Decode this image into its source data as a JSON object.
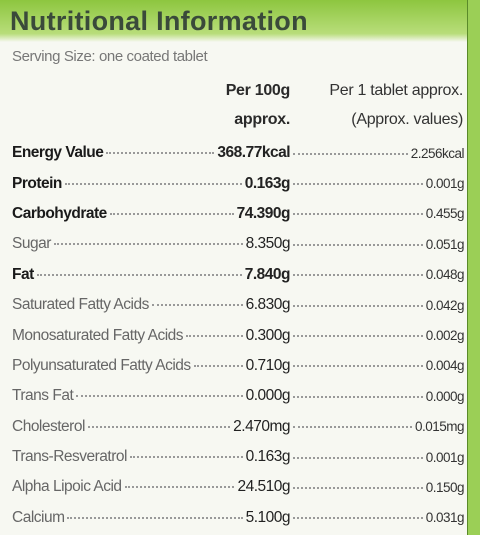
{
  "title": "Nutritional Information",
  "serving_size": "Serving Size: one coated tablet",
  "table": {
    "header": [
      [
        "Per 100g",
        "approx."
      ],
      [
        "Per 1 tablet approx.",
        "(Approx. values)"
      ]
    ],
    "rows": [
      [
        "Energy Value",
        "368.77kcal",
        "2.256kcal"
      ],
      [
        "Protein",
        "0.163g",
        "0.001g"
      ],
      [
        "Carbohydrate",
        "74.390g",
        "0.455g"
      ],
      [
        "Sugar",
        "8.350g",
        "0.051g"
      ],
      [
        "Fat",
        "7.840g",
        "0.048g"
      ],
      [
        "Saturated Fatty Acids",
        "6.830g",
        "0.042g"
      ],
      [
        "Monosaturated Fatty Acids",
        "0.300g",
        "0.002g"
      ],
      [
        "Polyunsaturated Fatty Acids",
        "0.710g",
        "0.004g"
      ],
      [
        "Trans Fat",
        "0.000g",
        "0.000g"
      ],
      [
        "Cholesterol",
        "2.470mg",
        "0.015mg"
      ],
      [
        "Trans-Resveratrol",
        "0.163g",
        "0.001g"
      ],
      [
        "Alpha Lipoic Acid",
        "24.510g",
        "0.150g"
      ],
      [
        "Calcium",
        "5.100g",
        "0.031g"
      ]
    ]
  }
}
